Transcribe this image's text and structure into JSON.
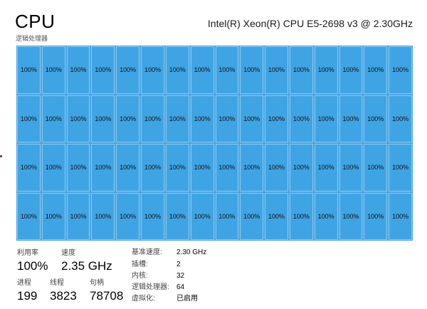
{
  "header": {
    "title": "CPU",
    "cpu_name": "Intel(R) Xeon(R) CPU E5-2698 v3 @ 2.30GHz",
    "subtitle": "逻辑处理器"
  },
  "grid": {
    "rows": 4,
    "cols": 16,
    "cell_label": "100%",
    "fill_color": "#3fa4e4",
    "utilization_percent": 100
  },
  "stats": {
    "utilization_label": "利用率",
    "utilization_value": "100%",
    "speed_label": "速度",
    "speed_value": "2.35 GHz",
    "processes_label": "进程",
    "processes_value": "199",
    "threads_label": "线程",
    "threads_value": "3823",
    "handles_label": "句柄",
    "handles_value": "78708"
  },
  "specs": [
    {
      "label": "基准速度:",
      "value": "2.30 GHz"
    },
    {
      "label": "插槽:",
      "value": "2"
    },
    {
      "label": "内核:",
      "value": "32"
    },
    {
      "label": "逻辑处理器:",
      "value": "64"
    },
    {
      "label": "虚拟化:",
      "value": "已启用"
    }
  ]
}
